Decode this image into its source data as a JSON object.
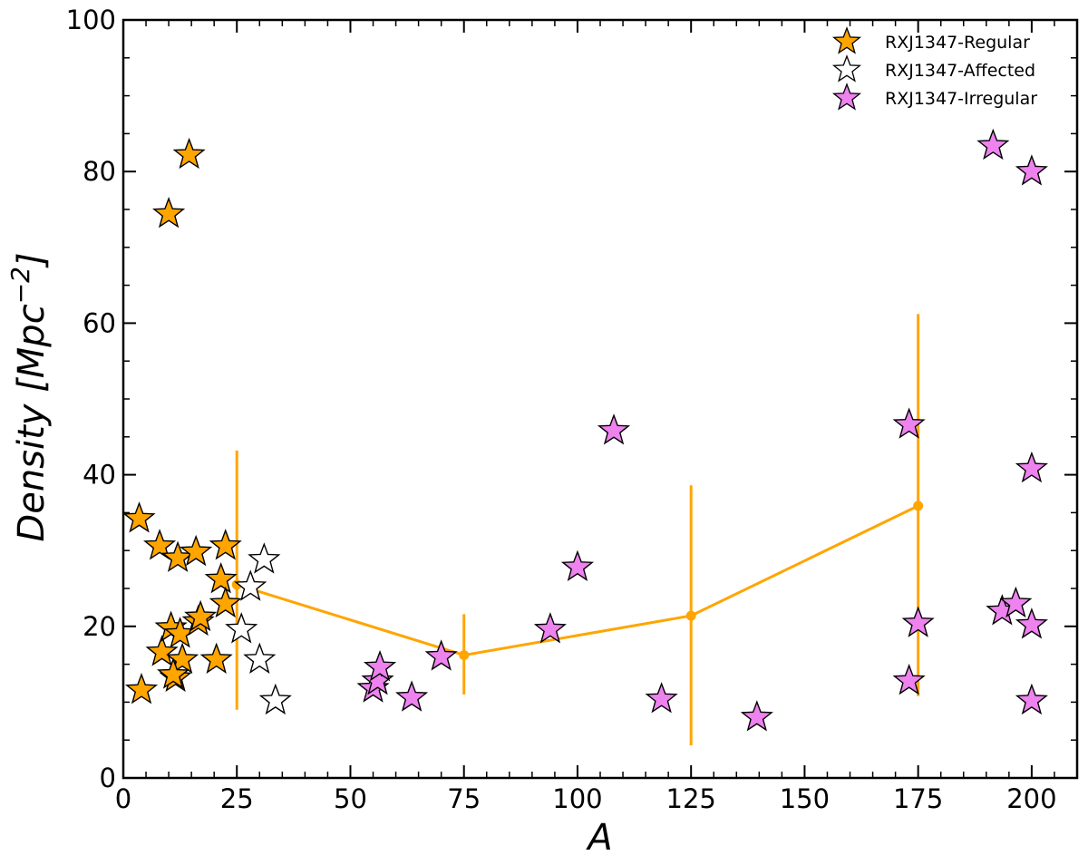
{
  "chart_data": {
    "type": "scatter",
    "title": "",
    "xlabel": "A",
    "ylabel_main": "Density [Mpc",
    "ylabel_sup": "−2",
    "ylabel_close": "]",
    "xlim": [
      0,
      210
    ],
    "ylim": [
      0,
      100
    ],
    "xticks": [
      0,
      25,
      50,
      75,
      100,
      125,
      150,
      175,
      200
    ],
    "yticks": [
      0,
      20,
      40,
      60,
      80,
      100
    ],
    "grid": false,
    "legend_position": "top-right",
    "series": [
      {
        "name": "RXJ1347-Regular",
        "color": "#ffa500",
        "marker": "star",
        "points": [
          [
            3.5,
            34.2
          ],
          [
            4,
            11.6
          ],
          [
            8,
            30.6
          ],
          [
            8.5,
            16.6
          ],
          [
            10,
            74.4
          ],
          [
            10.5,
            19.8
          ],
          [
            11.5,
            13.2
          ],
          [
            12,
            29.0
          ],
          [
            12.5,
            19.0
          ],
          [
            13,
            15.6
          ],
          [
            14.5,
            82.2
          ],
          [
            16,
            29.8
          ],
          [
            16.5,
            20.6
          ],
          [
            17,
            21.2
          ],
          [
            20.5,
            15.6
          ],
          [
            21.5,
            26.2
          ],
          [
            22.5,
            30.6
          ],
          [
            22.5,
            23.0
          ],
          [
            11,
            13.6
          ]
        ]
      },
      {
        "name": "RXJ1347-Affected",
        "color": "#ffffff",
        "marker": "star",
        "points": [
          [
            26,
            19.6
          ],
          [
            28,
            25.2
          ],
          [
            30,
            15.6
          ],
          [
            31,
            28.8
          ],
          [
            33.5,
            10.2
          ]
        ]
      },
      {
        "name": "RXJ1347-Irregular",
        "color": "#ee82ee",
        "marker": "star",
        "points": [
          [
            55,
            11.8
          ],
          [
            56,
            12.8
          ],
          [
            56.5,
            14.6
          ],
          [
            63.5,
            10.6
          ],
          [
            70,
            16.0
          ],
          [
            94,
            19.6
          ],
          [
            100,
            27.8
          ],
          [
            108,
            45.8
          ],
          [
            118.5,
            10.4
          ],
          [
            139.5,
            8.0
          ],
          [
            173,
            12.8
          ],
          [
            173,
            46.6
          ],
          [
            175,
            20.4
          ],
          [
            191.5,
            83.4
          ],
          [
            193.5,
            22.0
          ],
          [
            196.5,
            23.0
          ],
          [
            200,
            80.0
          ],
          [
            200,
            40.8
          ],
          [
            200,
            20.2
          ],
          [
            200,
            10.2
          ]
        ]
      }
    ],
    "binned_line": {
      "color": "#ffa500",
      "x": [
        25,
        75,
        125,
        175
      ],
      "y": [
        25.5,
        16.2,
        21.4,
        35.9
      ],
      "yerr_low": [
        9.0,
        11.0,
        4.3,
        10.8
      ],
      "yerr_high": [
        43.2,
        21.6,
        38.6,
        61.2
      ]
    }
  }
}
